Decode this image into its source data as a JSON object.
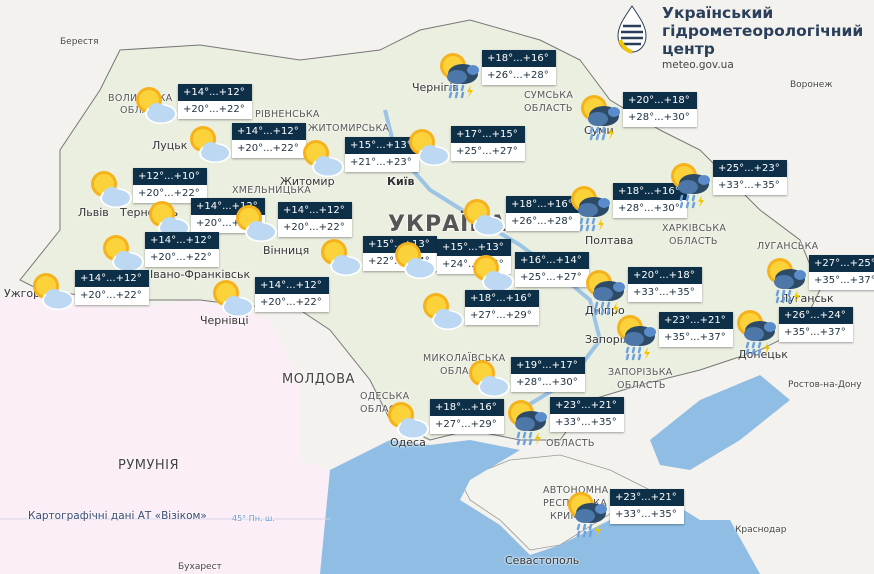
{
  "header": {
    "org_lines": [
      "Український",
      "гідрометеорологічний",
      "центр"
    ],
    "url": "meteo.gov.ua"
  },
  "labels": {
    "berestia": "Берестя",
    "chernihiv": "Чернігів",
    "sumy_reg1": "СУМСЬКА",
    "sumy_reg2": "ОБЛАСТЬ",
    "sumy": "Суми",
    "voronezh": "Воронеж",
    "lutsk": "Луцьк",
    "zhytomyr": "Житомир",
    "kyiv": "Київ",
    "lviv": "Львів",
    "ternopil": "Тернопіль",
    "vinnytsia": "Вінниця",
    "ivano": "Івано-Франківськ",
    "uzhhorod": "Ужгород",
    "chernivtsi": "Чернівці",
    "poltava": "Полтава",
    "kharkiv_reg1": "ХАРКІВСЬКА",
    "kharkiv_reg2": "ОБЛАСТЬ",
    "luhansk_reg": "ЛУГАНСЬКА",
    "luhansk": "Луганськ",
    "dnipro": "Дніпро",
    "zaporizhzhia": "Запоріжжя",
    "donetsk": "Донецьк",
    "zap_reg1": "ЗАПОРІЗЬКА",
    "zap_reg2": "ОБЛАСТЬ",
    "myk_reg1": "МИКОЛАЇВСЬКА",
    "myk_reg2": "ОБЛАСТЬ",
    "odesa_reg1": "ОДЕСЬКА",
    "odesa_reg2": "ОБЛАСТЬ",
    "odesa": "Одеса",
    "kherson_reg": "ОБЛАСТЬ",
    "crimea1": "АВТОНОМНА",
    "crimea2": "РЕСПУБЛІКА",
    "crimea3": "КРИМ",
    "sevastopol": "Севастополь",
    "rostov": "Ростов-на-Дону",
    "krasnodar": "Краснодар",
    "moldova": "МОЛДОВА",
    "romania": "РУМУНІЯ",
    "bucharest": "Бухарест",
    "ukraine": "УКРАЇНА",
    "volyn1": "ВОЛИНСЬКА",
    "volyn2": "ОБЛАСТЬ",
    "rivne": "РІВНЕНСЬКА",
    "zhyt_reg": "ЖИТОМИРСЬКА",
    "khmel": "ХМЕЛЬНИЦЬКА"
  },
  "credit": "Картографічні дані АТ «Візіком»",
  "latitude_label": "45° Пн. ш.",
  "colors": {
    "night_bg": "#0e2f48",
    "day_bg": "#ffffff",
    "sea": "#8fbde3",
    "land": "#e9eede",
    "romania": "#fbeef6"
  },
  "forecasts": [
    {
      "region": "Volyn",
      "icon": "sun-cloud",
      "night": "+14°...+12°",
      "day": "+20°...+22°"
    },
    {
      "region": "Rivne",
      "icon": "sun-cloud",
      "night": "+14°...+12°",
      "day": "+20°...+22°"
    },
    {
      "region": "Zhytomyr",
      "icon": "sun-cloud",
      "night": "+15°...+13°",
      "day": "+21°...+23°"
    },
    {
      "region": "Lviv",
      "icon": "sun-cloud",
      "night": "+12°...+10°",
      "day": "+20°...+22°"
    },
    {
      "region": "Ternopil",
      "icon": "sun-cloud",
      "night": "+14°...+12°",
      "day": "+20°...+22°"
    },
    {
      "region": "Khmelnytskyi",
      "icon": "sun-cloud",
      "night": "+14°...+12°",
      "day": "+20°...+22°"
    },
    {
      "region": "Ivano-Frankivsk",
      "icon": "sun-cloud",
      "night": "+14°...+12°",
      "day": "+20°...+22°"
    },
    {
      "region": "Zakarpattia",
      "icon": "sun-cloud",
      "night": "+14°...+12°",
      "day": "+20°...+22°"
    },
    {
      "region": "Chernivtsi",
      "icon": "sun-cloud",
      "night": "+14°...+12°",
      "day": "+20°...+22°"
    },
    {
      "region": "Vinnytsia",
      "icon": "sun-cloud",
      "night": "+15°...+13°",
      "day": "+22°...+24°"
    },
    {
      "region": "Kyiv",
      "icon": "sun-cloud",
      "night": "+17°...+15°",
      "day": "+25°...+27°"
    },
    {
      "region": "Chernihiv",
      "icon": "thunderstorm",
      "night": "+18°...+16°",
      "day": "+26°...+28°"
    },
    {
      "region": "Sumy",
      "icon": "thunderstorm",
      "night": "+20°...+18°",
      "day": "+28°...+30°"
    },
    {
      "region": "Cherkasy",
      "icon": "sun-cloud",
      "night": "+18°...+16°",
      "day": "+26°...+28°"
    },
    {
      "region": "Poltava",
      "icon": "thunderstorm",
      "night": "+18°...+16°",
      "day": "+28°...+30°"
    },
    {
      "region": "Kharkiv",
      "icon": "thunderstorm",
      "night": "+25°...+23°",
      "day": "+33°...+35°"
    },
    {
      "region": "Uman",
      "icon": "sun-cloud",
      "night": "+15°...+13°",
      "day": "+24°...+25°"
    },
    {
      "region": "Kirovohrad",
      "icon": "sun-cloud",
      "night": "+16°...+14°",
      "day": "+25°...+27°"
    },
    {
      "region": "Kropyvnytskyi",
      "icon": "sun-cloud",
      "night": "+18°...+16°",
      "day": "+27°...+29°"
    },
    {
      "region": "Dnipro",
      "icon": "thunderstorm",
      "night": "+20°...+18°",
      "day": "+33°...+35°"
    },
    {
      "region": "Zaporizhzhia",
      "icon": "thunderstorm",
      "night": "+23°...+21°",
      "day": "+35°...+37°"
    },
    {
      "region": "Luhansk",
      "icon": "thunderstorm",
      "night": "+27°...+25°",
      "day": "+35°...+37°"
    },
    {
      "region": "Donetsk",
      "icon": "thunderstorm",
      "night": "+26°...+24°",
      "day": "+35°...+37°"
    },
    {
      "region": "Mykolaiv",
      "icon": "sun-cloud",
      "night": "+19°...+17°",
      "day": "+28°...+30°"
    },
    {
      "region": "Odesa",
      "icon": "sun-cloud",
      "night": "+18°...+16°",
      "day": "+27°...+29°"
    },
    {
      "region": "Kherson",
      "icon": "thunderstorm",
      "night": "+23°...+21°",
      "day": "+33°...+35°"
    },
    {
      "region": "Crimea",
      "icon": "thunderstorm",
      "night": "+23°...+21°",
      "day": "+33°...+35°"
    }
  ]
}
